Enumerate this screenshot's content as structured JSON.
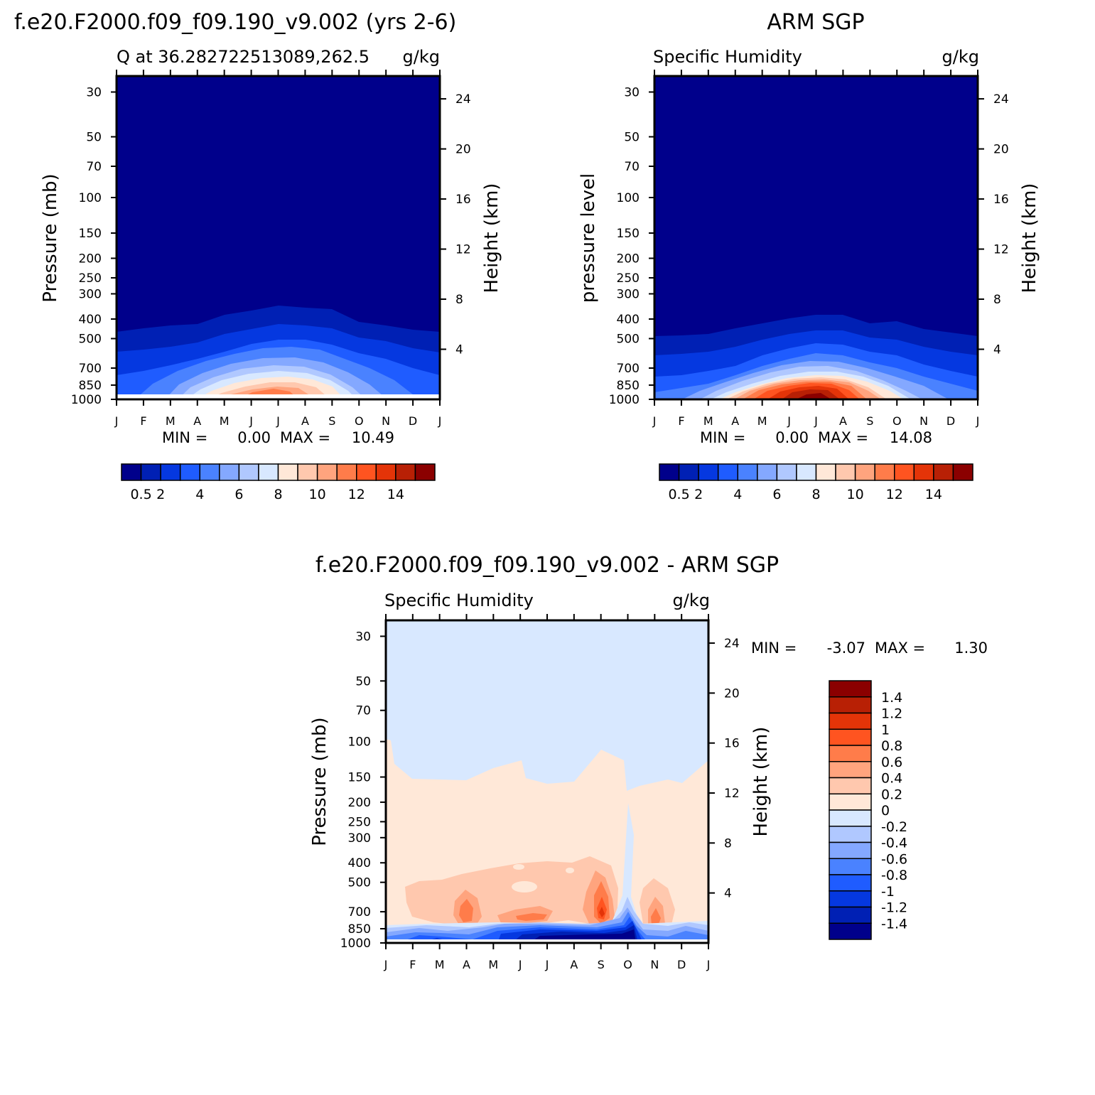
{
  "colors": {
    "abs_scale": [
      "#00008b",
      "#0020b4",
      "#0538e0",
      "#1f5cff",
      "#4a82ff",
      "#84a8ff",
      "#b0c8ff",
      "#d8e8ff",
      "#ffe8d8",
      "#ffc8ae",
      "#ffa47e",
      "#ff7c4a",
      "#ff5420",
      "#e43408",
      "#b82005",
      "#8b0000"
    ],
    "diff_scale": [
      "#00008b",
      "#0020b4",
      "#0538e0",
      "#1f5cff",
      "#4a82ff",
      "#84a8ff",
      "#b0c8ff",
      "#d8e8ff",
      "#ffe8d8",
      "#ffc8ae",
      "#ffa47e",
      "#ff7c4a",
      "#ff5420",
      "#e43408",
      "#b82005",
      "#8b0000"
    ]
  },
  "panels": [
    {
      "id": "model",
      "title": "f.e20.F2000.f09_f09.190_v9.002 (yrs 2-6)",
      "left_label": "Q at 36.282722513089,262.5",
      "right_label": "g/kg",
      "ylabel": "Pressure (mb)",
      "ylabel_right": "Height (km)",
      "min_label": "MIN =",
      "min_value": "0.00",
      "max_label": "MAX =",
      "max_value": "10.49"
    },
    {
      "id": "obs",
      "title": "ARM SGP",
      "left_label": "Specific Humidity",
      "right_label": "g/kg",
      "ylabel": "pressure level",
      "ylabel_right": "Height (km)",
      "min_label": "MIN =",
      "min_value": "0.00",
      "max_label": "MAX =",
      "max_value": "14.08"
    },
    {
      "id": "diff",
      "title": "f.e20.F2000.f09_f09.190_v9.002 - ARM SGP",
      "left_label": "Specific Humidity",
      "right_label": "g/kg",
      "ylabel": "Pressure (mb)",
      "ylabel_right": "Height (km)",
      "min_label": "MIN =",
      "min_value": "-3.07",
      "max_label": "MAX =",
      "max_value": "1.30"
    }
  ],
  "colorbars": {
    "abs": {
      "labels": [
        "0.5",
        "2",
        "4",
        "6",
        "8",
        "10",
        "12",
        "14"
      ]
    },
    "diff": {
      "labels": [
        "1.4",
        "1.2",
        "1",
        "0.8",
        "0.6",
        "0.4",
        "0.2",
        "0",
        "-0.2",
        "-0.4",
        "-0.6",
        "-0.8",
        "-1",
        "-1.2",
        "-1.4"
      ]
    }
  },
  "chart_data": [
    {
      "type": "heatmap",
      "title": "f.e20.F2000.f09_f09.190_v9.002 (yrs 2-6)",
      "subtitle": "Q at 36.282722513089,262.5 (g/kg)",
      "x": [
        "J",
        "F",
        "M",
        "A",
        "M",
        "J",
        "J",
        "A",
        "S",
        "O",
        "N",
        "D",
        "J"
      ],
      "xlabel": "",
      "y_ticks": [
        30,
        50,
        70,
        100,
        150,
        200,
        250,
        300,
        400,
        500,
        700,
        850,
        1000
      ],
      "ylabel": "Pressure (mb)",
      "y2_ticks": [
        24,
        20,
        16,
        12,
        8,
        4
      ],
      "y2label": "Height (km)",
      "ylim": [
        1000,
        25
      ],
      "contour_levels": [
        0.5,
        1,
        2,
        3,
        4,
        5,
        6,
        7,
        8,
        9,
        10,
        11,
        12,
        13,
        14
      ],
      "min": 0.0,
      "max": 10.49,
      "peak": {
        "month_index": 6,
        "pressure_mb": 900,
        "value": 10.49
      }
    },
    {
      "type": "heatmap",
      "title": "ARM SGP",
      "subtitle": "Specific Humidity (g/kg)",
      "x": [
        "J",
        "F",
        "M",
        "A",
        "M",
        "J",
        "J",
        "A",
        "S",
        "O",
        "N",
        "D",
        "J"
      ],
      "y_ticks": [
        30,
        50,
        70,
        100,
        150,
        200,
        250,
        300,
        400,
        500,
        700,
        850,
        1000
      ],
      "ylabel": "pressure level",
      "y2_ticks": [
        24,
        20,
        16,
        12,
        8,
        4
      ],
      "y2label": "Height (km)",
      "ylim": [
        1000,
        25
      ],
      "contour_levels": [
        0.5,
        1,
        2,
        3,
        4,
        5,
        6,
        7,
        8,
        9,
        10,
        11,
        12,
        13,
        14
      ],
      "min": 0.0,
      "max": 14.08,
      "peak": {
        "month_index": 6,
        "pressure_mb": 960,
        "value": 14.08
      }
    },
    {
      "type": "heatmap",
      "title": "f.e20.F2000.f09_f09.190_v9.002 - ARM SGP",
      "subtitle": "Specific Humidity (g/kg)",
      "x": [
        "J",
        "F",
        "M",
        "A",
        "M",
        "J",
        "J",
        "A",
        "S",
        "O",
        "N",
        "D",
        "J"
      ],
      "y_ticks": [
        30,
        50,
        70,
        100,
        150,
        200,
        250,
        300,
        400,
        500,
        700,
        850,
        1000
      ],
      "ylabel": "Pressure (mb)",
      "y2_ticks": [
        24,
        20,
        16,
        12,
        8,
        4
      ],
      "y2label": "Height (km)",
      "ylim": [
        1000,
        25
      ],
      "contour_levels": [
        -1.4,
        -1.2,
        -1,
        -0.8,
        -0.6,
        -0.4,
        -0.2,
        0,
        0.2,
        0.4,
        0.6,
        0.8,
        1,
        1.2,
        1.4
      ],
      "min": -3.07,
      "max": 1.3
    }
  ]
}
